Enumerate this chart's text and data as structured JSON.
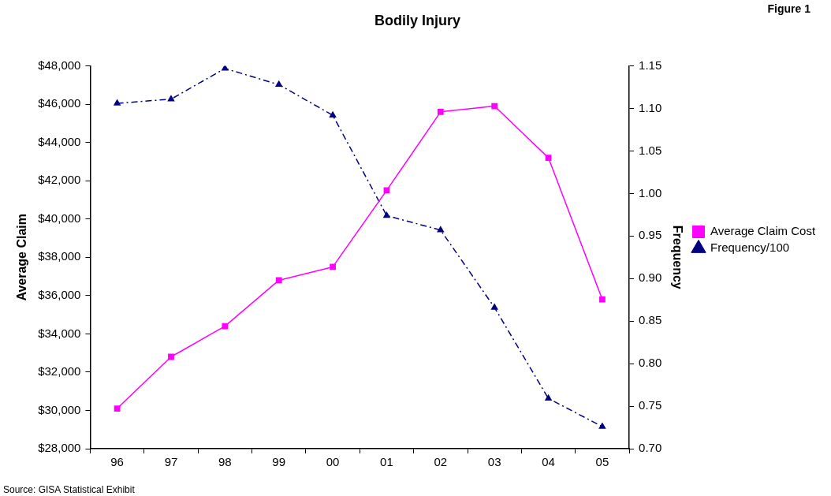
{
  "chart_data": {
    "type": "line",
    "title": "Bodily Injury",
    "xlabel": null,
    "ylabel": "Average Claim",
    "y2label": "Frequency",
    "annotations": [
      "Figure 1",
      "Source:  GISA Statistical Exhibit"
    ],
    "categories": [
      "96",
      "97",
      "98",
      "99",
      "00",
      "01",
      "02",
      "03",
      "04",
      "05"
    ],
    "series": [
      {
        "name": "Average Claim Cost",
        "color": "#ff00ff",
        "marker": "square",
        "line_style": "solid",
        "values": [
          30100,
          32800,
          34400,
          36800,
          37500,
          41500,
          45600,
          45900,
          43200,
          35800
        ]
      },
      {
        "name": "Frequency/100",
        "color": "#000080",
        "marker": "triangle",
        "line_style": "dashed",
        "axis": "y2",
        "values": [
          1.106,
          1.111,
          1.147,
          1.128,
          1.092,
          0.974,
          0.957,
          0.866,
          0.759,
          0.726
        ]
      }
    ],
    "ylim": [
      28000,
      48000
    ],
    "yticks": [
      {
        "value": 28000,
        "label": "$28,000"
      },
      {
        "value": 30000,
        "label": "$30,000"
      },
      {
        "value": 32000,
        "label": "$32,000"
      },
      {
        "value": 34000,
        "label": "$34,000"
      },
      {
        "value": 36000,
        "label": "$36,000"
      },
      {
        "value": 38000,
        "label": "$38,000"
      },
      {
        "value": 40000,
        "label": "$40,000"
      },
      {
        "value": 42000,
        "label": "$42,000"
      },
      {
        "value": 44000,
        "label": "$44,000"
      },
      {
        "value": 46000,
        "label": "$46,000"
      },
      {
        "value": 48000,
        "label": "$48,000"
      }
    ],
    "y2lim": [
      0.7,
      1.15
    ],
    "y2ticks": [
      {
        "value": 0.7,
        "label": "0.70"
      },
      {
        "value": 0.75,
        "label": "0.75"
      },
      {
        "value": 0.8,
        "label": "0.80"
      },
      {
        "value": 0.85,
        "label": "0.85"
      },
      {
        "value": 0.9,
        "label": "0.90"
      },
      {
        "value": 0.95,
        "label": "0.95"
      },
      {
        "value": 1.0,
        "label": "1.00"
      },
      {
        "value": 1.05,
        "label": "1.05"
      },
      {
        "value": 1.1,
        "label": "1.10"
      },
      {
        "value": 1.15,
        "label": "1.15"
      }
    ],
    "grid": false,
    "legend": "right"
  }
}
